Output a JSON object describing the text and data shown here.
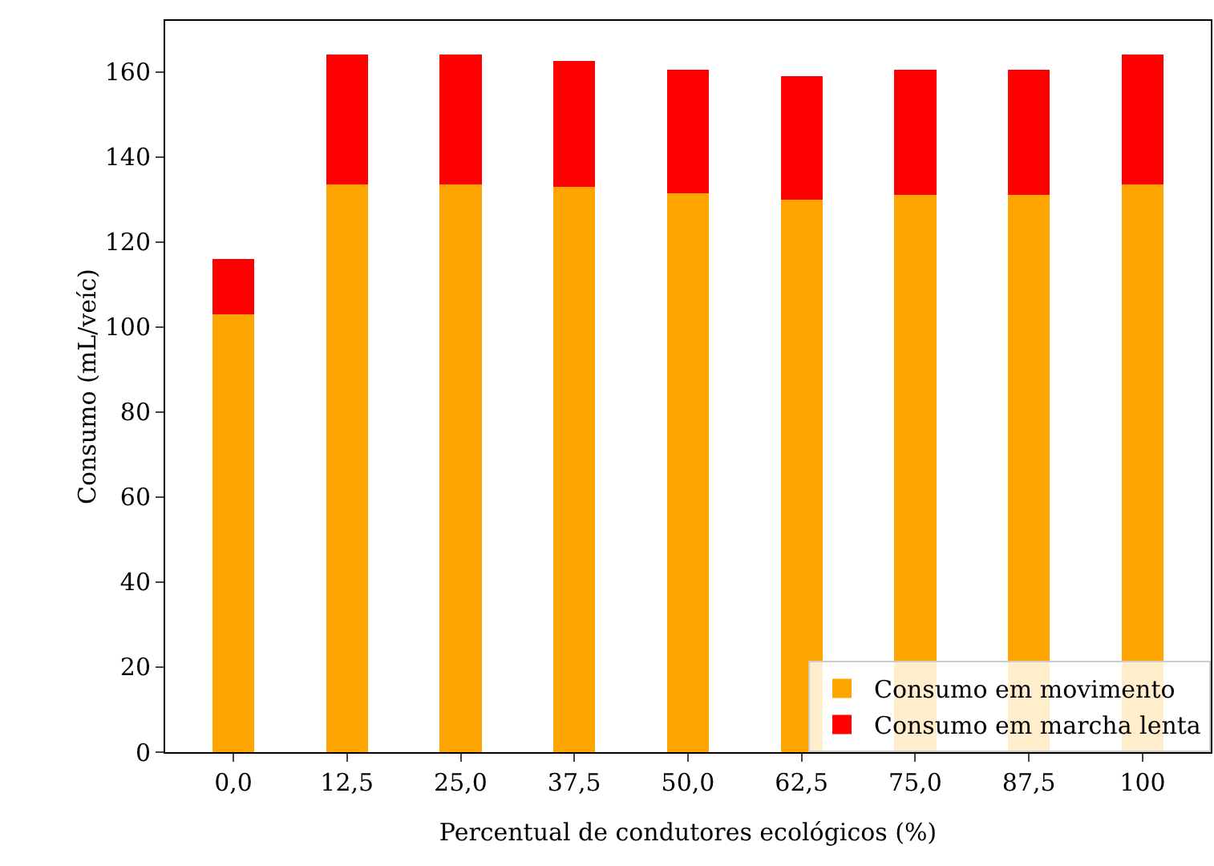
{
  "chart_data": {
    "type": "bar",
    "stacked": true,
    "xlabel": "Percentual de condutores ecológicos (%)",
    "ylabel": "Consumo (mL/veíc)",
    "categories": [
      "0,0",
      "12,5",
      "25,0",
      "37,5",
      "50,0",
      "62,5",
      "75,0",
      "87,5",
      "100"
    ],
    "series": [
      {
        "name": "Consumo em movimento",
        "color": "#ffa500",
        "values": [
          103,
          133.5,
          133.5,
          133,
          131.5,
          130,
          131,
          131,
          133.5
        ]
      },
      {
        "name": "Consumo em marcha lenta",
        "color": "#ff0000",
        "values": [
          13,
          30.5,
          30.5,
          29.5,
          29,
          29,
          29.5,
          29.5,
          30.5
        ]
      }
    ],
    "ylim": [
      0,
      172
    ],
    "yticks": [
      0,
      20,
      40,
      60,
      80,
      100,
      120,
      140,
      160
    ],
    "grid": false,
    "legend": "bottom right"
  }
}
